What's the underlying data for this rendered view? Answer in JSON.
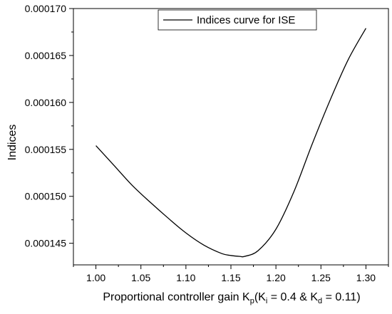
{
  "chart_data": {
    "type": "line",
    "title": "",
    "xlabel": {
      "main": "Proportional controller gain K",
      "main_sub": "p",
      "open": "(K",
      "ki_sub": "i",
      "ki_val": " = 0.4 & K",
      "kd_sub": "d",
      "kd_val": " = 0.11)"
    },
    "ylabel": "Indices",
    "xlim": [
      0.975,
      1.325
    ],
    "ylim": [
      0.0001427,
      0.00017
    ],
    "x_ticks": [
      "1.00",
      "1.05",
      "1.10",
      "1.15",
      "1.20",
      "1.25",
      "1.30"
    ],
    "x_tick_values": [
      1.0,
      1.05,
      1.1,
      1.15,
      1.2,
      1.25,
      1.3
    ],
    "y_ticks": [
      "0.000145",
      "0.000150",
      "0.000155",
      "0.000160",
      "0.000165",
      "0.000170"
    ],
    "y_tick_values": [
      0.000145,
      0.00015,
      0.000155,
      0.00016,
      0.000165,
      0.00017
    ],
    "grid": false,
    "legend_position": "top-center",
    "series": [
      {
        "name": "Indices curve for ISE",
        "color": "#000000",
        "x": [
          1.0,
          1.02,
          1.04,
          1.06,
          1.08,
          1.1,
          1.12,
          1.14,
          1.15,
          1.16,
          1.165,
          1.18,
          1.2,
          1.22,
          1.24,
          1.26,
          1.28,
          1.3
        ],
        "y": [
          0.0001554,
          0.0001533,
          0.0001512,
          0.0001494,
          0.0001477,
          0.0001461,
          0.0001448,
          0.0001439,
          0.0001437,
          0.0001436,
          0.0001436,
          0.0001442,
          0.0001465,
          0.0001505,
          0.0001555,
          0.0001602,
          0.0001645,
          0.0001679
        ]
      }
    ]
  }
}
